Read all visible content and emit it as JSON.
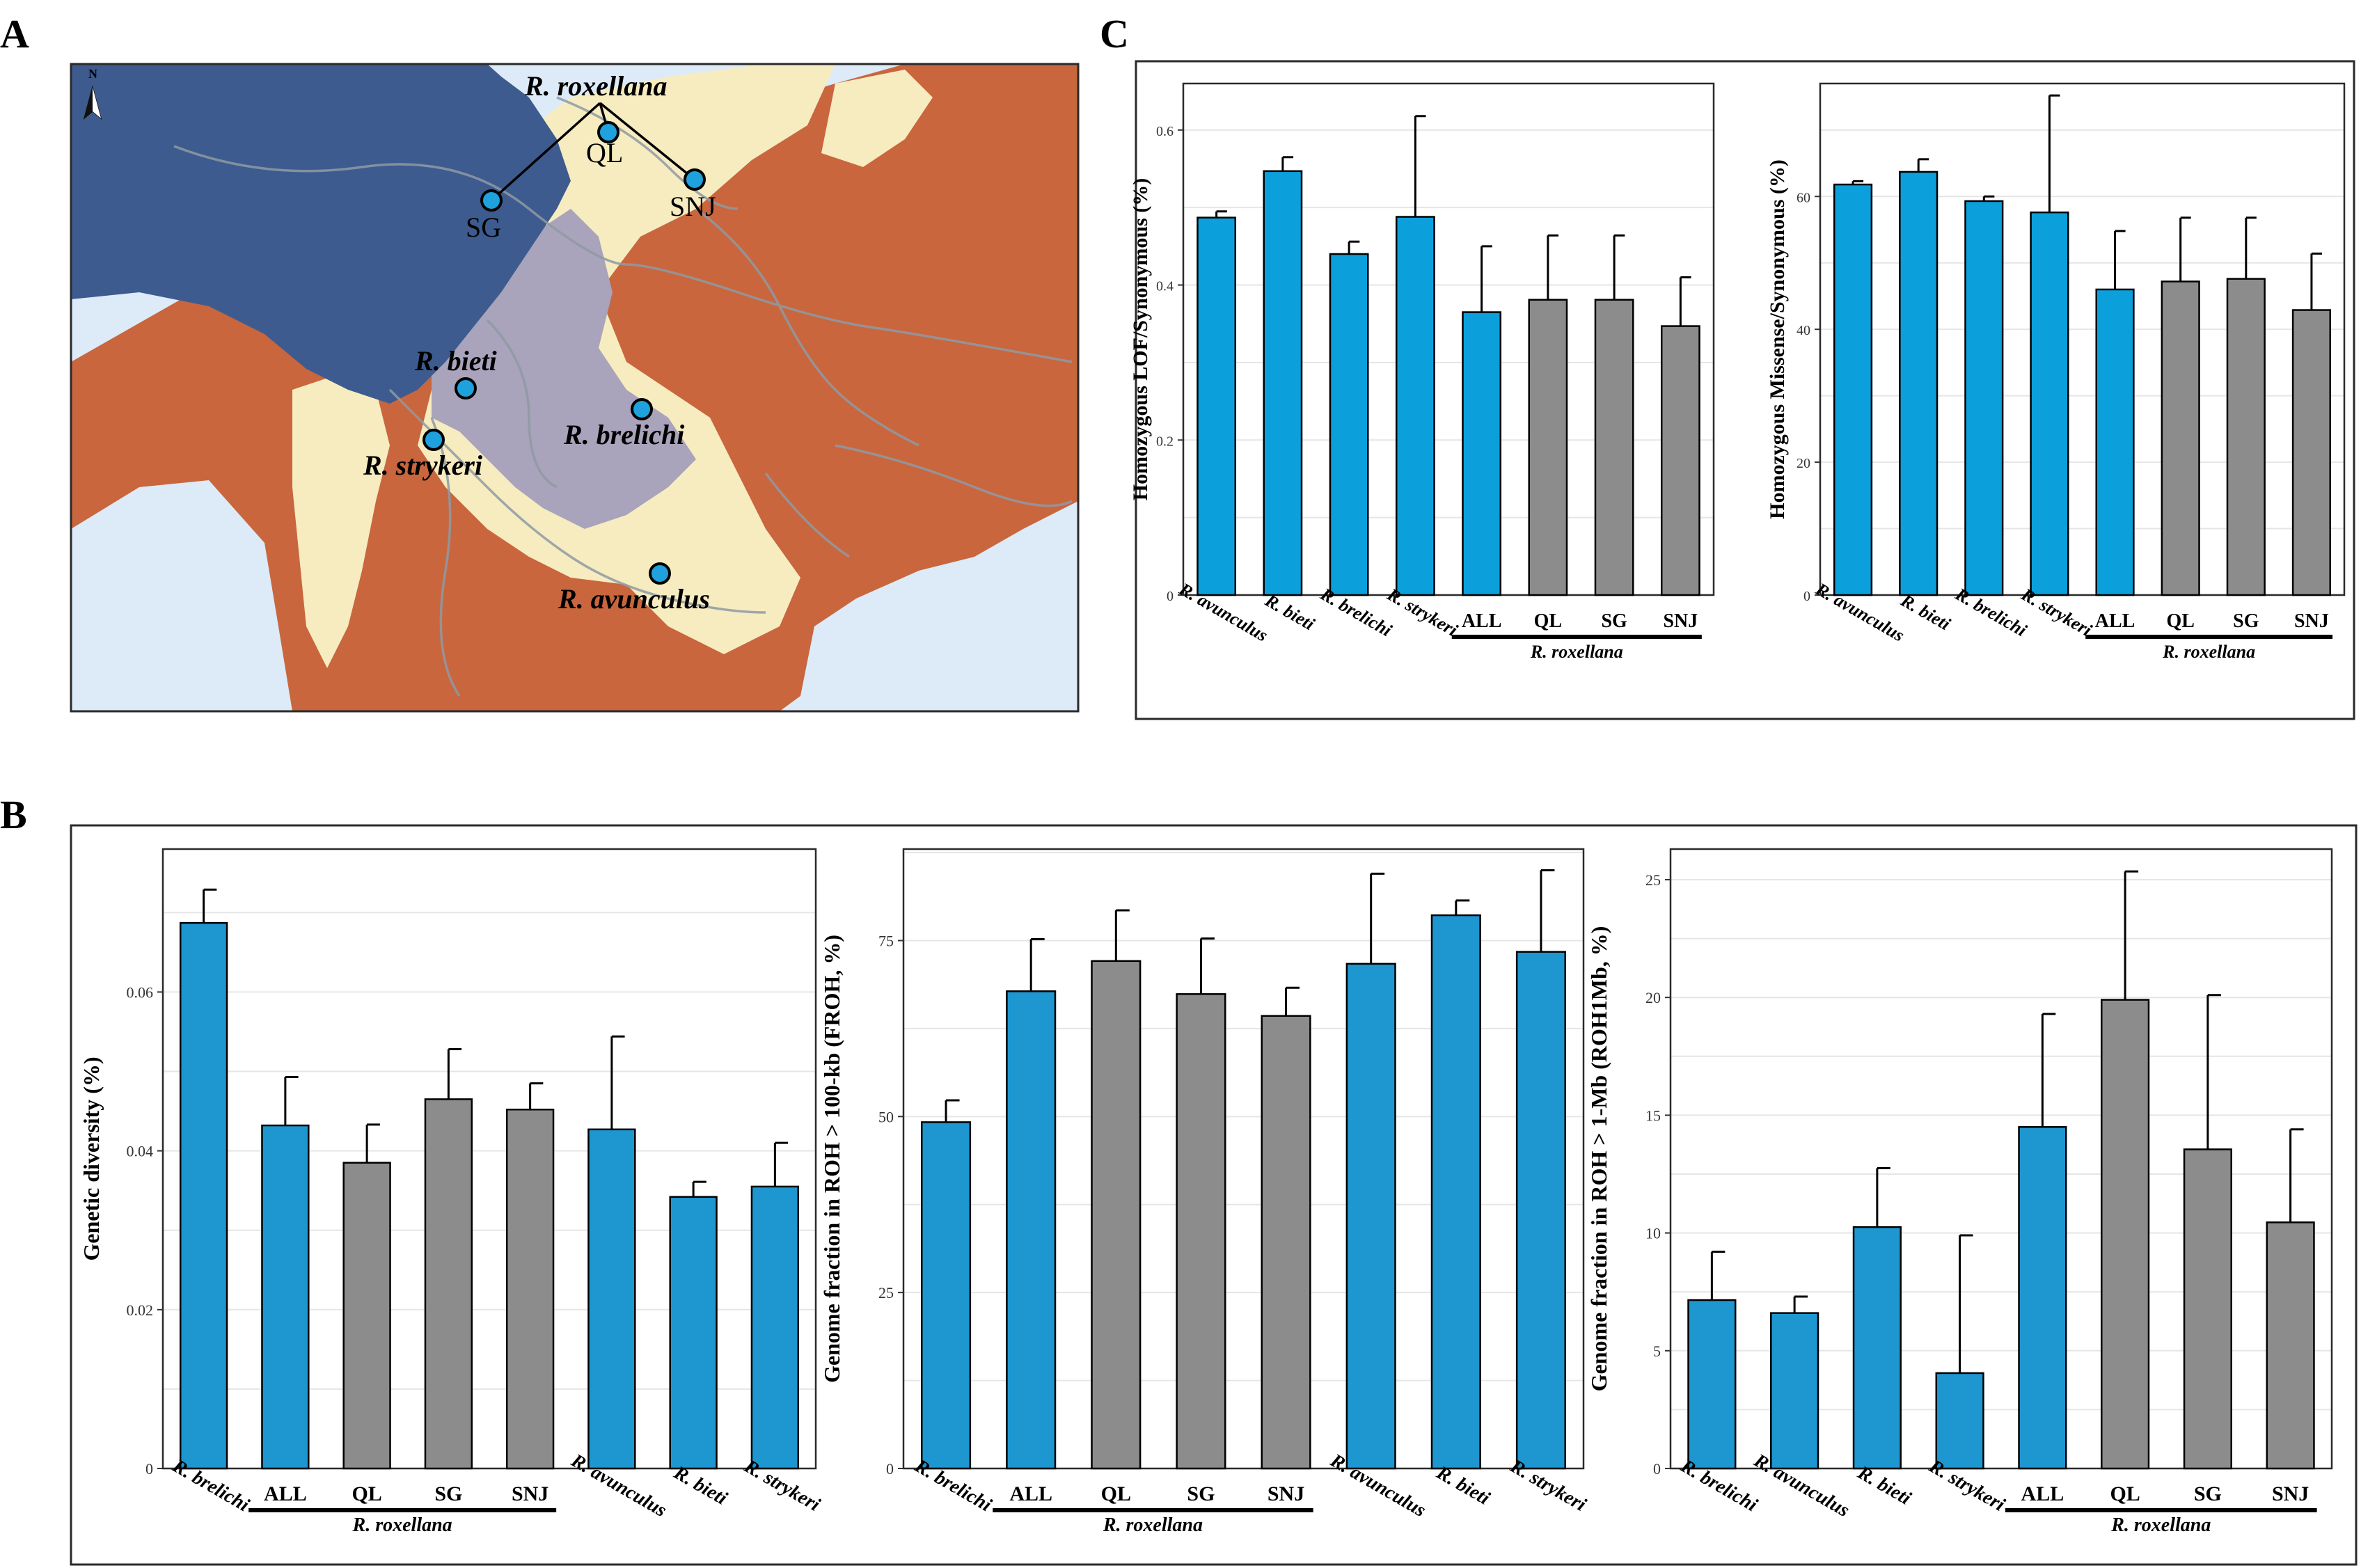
{
  "panel_labels": {
    "a": "A",
    "b": "B",
    "c": "C"
  },
  "colors": {
    "blue_bar": "#1e96d0",
    "blue_bar_c": "#0ba0dc",
    "grey_bar": "#8c8c8c",
    "grid": "#e6e6e6",
    "frame": "#2a2a2a",
    "map_sea": "#dcebf7",
    "map_highland": "#3d5b8e",
    "map_upland": "#a9a3bb",
    "map_hills": "#f6ecc0",
    "map_lowland": "#c9663e",
    "map_river": "#8f9aa3",
    "site_marker": "#1ea1dc"
  },
  "map": {
    "north_symbol": "N",
    "sites": [
      {
        "label": "QL",
        "species": "R. roxellana"
      },
      {
        "label": "SG",
        "species": "R. roxellana"
      },
      {
        "label": "SNJ",
        "species": "R. roxellana"
      },
      {
        "label": "",
        "species": "R. bieti"
      },
      {
        "label": "",
        "species": "R. strykeri"
      },
      {
        "label": "",
        "species": "R. brelichi"
      },
      {
        "label": "",
        "species": "R. avunculus"
      }
    ],
    "species_labels": [
      "R. roxellana",
      "R. bieti",
      "R. strykeri",
      "R. brelichi",
      "R. avunculus"
    ]
  },
  "chart_data": [
    {
      "id": "C1",
      "type": "bar",
      "ylabel": "Homozygous LOF/Synonymous (%)",
      "ylim": [
        0,
        0.66
      ],
      "yticks": [
        0,
        0.2,
        0.4,
        0.6
      ],
      "ytick_labels": [
        "0",
        "0.2",
        "0.4",
        "0.6"
      ],
      "categories": [
        "R. avunculus",
        "R. bieti",
        "R. brelichi",
        "R. strykeri",
        "ALL",
        "QL",
        "SG",
        "SNJ"
      ],
      "italic": [
        true,
        true,
        true,
        true,
        false,
        false,
        false,
        false
      ],
      "values": [
        0.487,
        0.547,
        0.44,
        0.488,
        0.365,
        0.381,
        0.381,
        0.347
      ],
      "errors": [
        0.008,
        0.018,
        0.016,
        0.13,
        0.085,
        0.083,
        0.083,
        0.063
      ],
      "colors": [
        "blue",
        "blue",
        "blue",
        "blue",
        "blue",
        "grey",
        "grey",
        "grey"
      ],
      "group_label": "R. roxellana",
      "grid": true
    },
    {
      "id": "C2",
      "type": "bar",
      "ylabel": "Homozygous Missense/Synonymous (%)",
      "ylim": [
        0,
        77
      ],
      "yticks": [
        0,
        20,
        40,
        60
      ],
      "ytick_labels": [
        "0",
        "20",
        "40",
        "60"
      ],
      "categories": [
        "R. avunculus",
        "R. bieti",
        "R. brelichi",
        "R. strykeri",
        "ALL",
        "QL",
        "SG",
        "SNJ"
      ],
      "italic": [
        true,
        true,
        true,
        true,
        false,
        false,
        false,
        false
      ],
      "values": [
        61.8,
        63.7,
        59.3,
        57.6,
        46.0,
        47.2,
        47.6,
        42.9
      ],
      "errors": [
        0.5,
        1.9,
        0.7,
        17.6,
        8.8,
        9.6,
        9.2,
        8.5
      ],
      "colors": [
        "blue",
        "blue",
        "blue",
        "blue",
        "blue",
        "grey",
        "grey",
        "grey"
      ],
      "group_label": "R. roxellana",
      "grid": true
    },
    {
      "id": "B1",
      "type": "bar",
      "ylabel": "Genetic diversity (%)",
      "ylim": [
        0,
        0.078
      ],
      "yticks": [
        0,
        0.02,
        0.04,
        0.06
      ],
      "ytick_labels": [
        "0",
        "0.02",
        "0.04",
        "0.06"
      ],
      "categories": [
        "R. brelichi",
        "ALL",
        "QL",
        "SG",
        "SNJ",
        "R. avunculus",
        "R. bieti",
        "R. strykeri"
      ],
      "italic": [
        true,
        false,
        false,
        false,
        false,
        true,
        true,
        true
      ],
      "values": [
        0.0687,
        0.0432,
        0.0385,
        0.0465,
        0.0452,
        0.0427,
        0.0342,
        0.0355
      ],
      "errors": [
        0.0042,
        0.0061,
        0.0048,
        0.0063,
        0.0033,
        0.0117,
        0.0019,
        0.0055
      ],
      "colors": [
        "blue",
        "blue",
        "grey",
        "grey",
        "grey",
        "blue",
        "blue",
        "blue"
      ],
      "group_label": "R. roxellana",
      "grid": true
    },
    {
      "id": "B2",
      "type": "bar",
      "ylabel": "Genome fraction in ROH > 100-kb (FROH, %)",
      "ylim": [
        0,
        88
      ],
      "yticks": [
        0,
        25,
        50,
        75
      ],
      "ytick_labels": [
        "0",
        "25",
        "50",
        "75"
      ],
      "categories": [
        "R. brelichi",
        "ALL",
        "QL",
        "SG",
        "SNJ",
        "R. avunculus",
        "R. bieti",
        "R. strykeri"
      ],
      "italic": [
        true,
        false,
        false,
        false,
        false,
        true,
        true,
        true
      ],
      "values": [
        49.2,
        67.8,
        72.1,
        67.4,
        64.3,
        71.7,
        78.6,
        73.4
      ],
      "errors": [
        3.1,
        7.4,
        7.2,
        7.9,
        4.0,
        12.8,
        2.1,
        11.6
      ],
      "colors": [
        "blue",
        "blue",
        "grey",
        "grey",
        "grey",
        "blue",
        "blue",
        "blue"
      ],
      "group_label": "R. roxellana",
      "grid": true
    },
    {
      "id": "B3",
      "type": "bar",
      "ylabel": "Genome fraction in ROH > 1-Mb (ROH1Mb, %)",
      "ylim": [
        0,
        26.3
      ],
      "yticks": [
        0,
        5,
        10,
        15,
        20,
        25
      ],
      "ytick_labels": [
        "0",
        "5",
        "10",
        "15",
        "20",
        "25"
      ],
      "categories": [
        "R. brelichi",
        "R. avunculus",
        "R. bieti",
        "R. strykeri",
        "ALL",
        "QL",
        "SG",
        "SNJ"
      ],
      "italic": [
        true,
        true,
        true,
        true,
        false,
        false,
        false,
        false
      ],
      "values": [
        7.15,
        6.6,
        10.25,
        4.05,
        14.5,
        19.9,
        13.55,
        10.45
      ],
      "errors": [
        2.05,
        0.7,
        2.5,
        5.85,
        4.8,
        5.45,
        6.55,
        3.95
      ],
      "colors": [
        "blue",
        "blue",
        "blue",
        "blue",
        "blue",
        "grey",
        "grey",
        "grey"
      ],
      "group_label": "R. roxellana",
      "grid": true
    }
  ]
}
